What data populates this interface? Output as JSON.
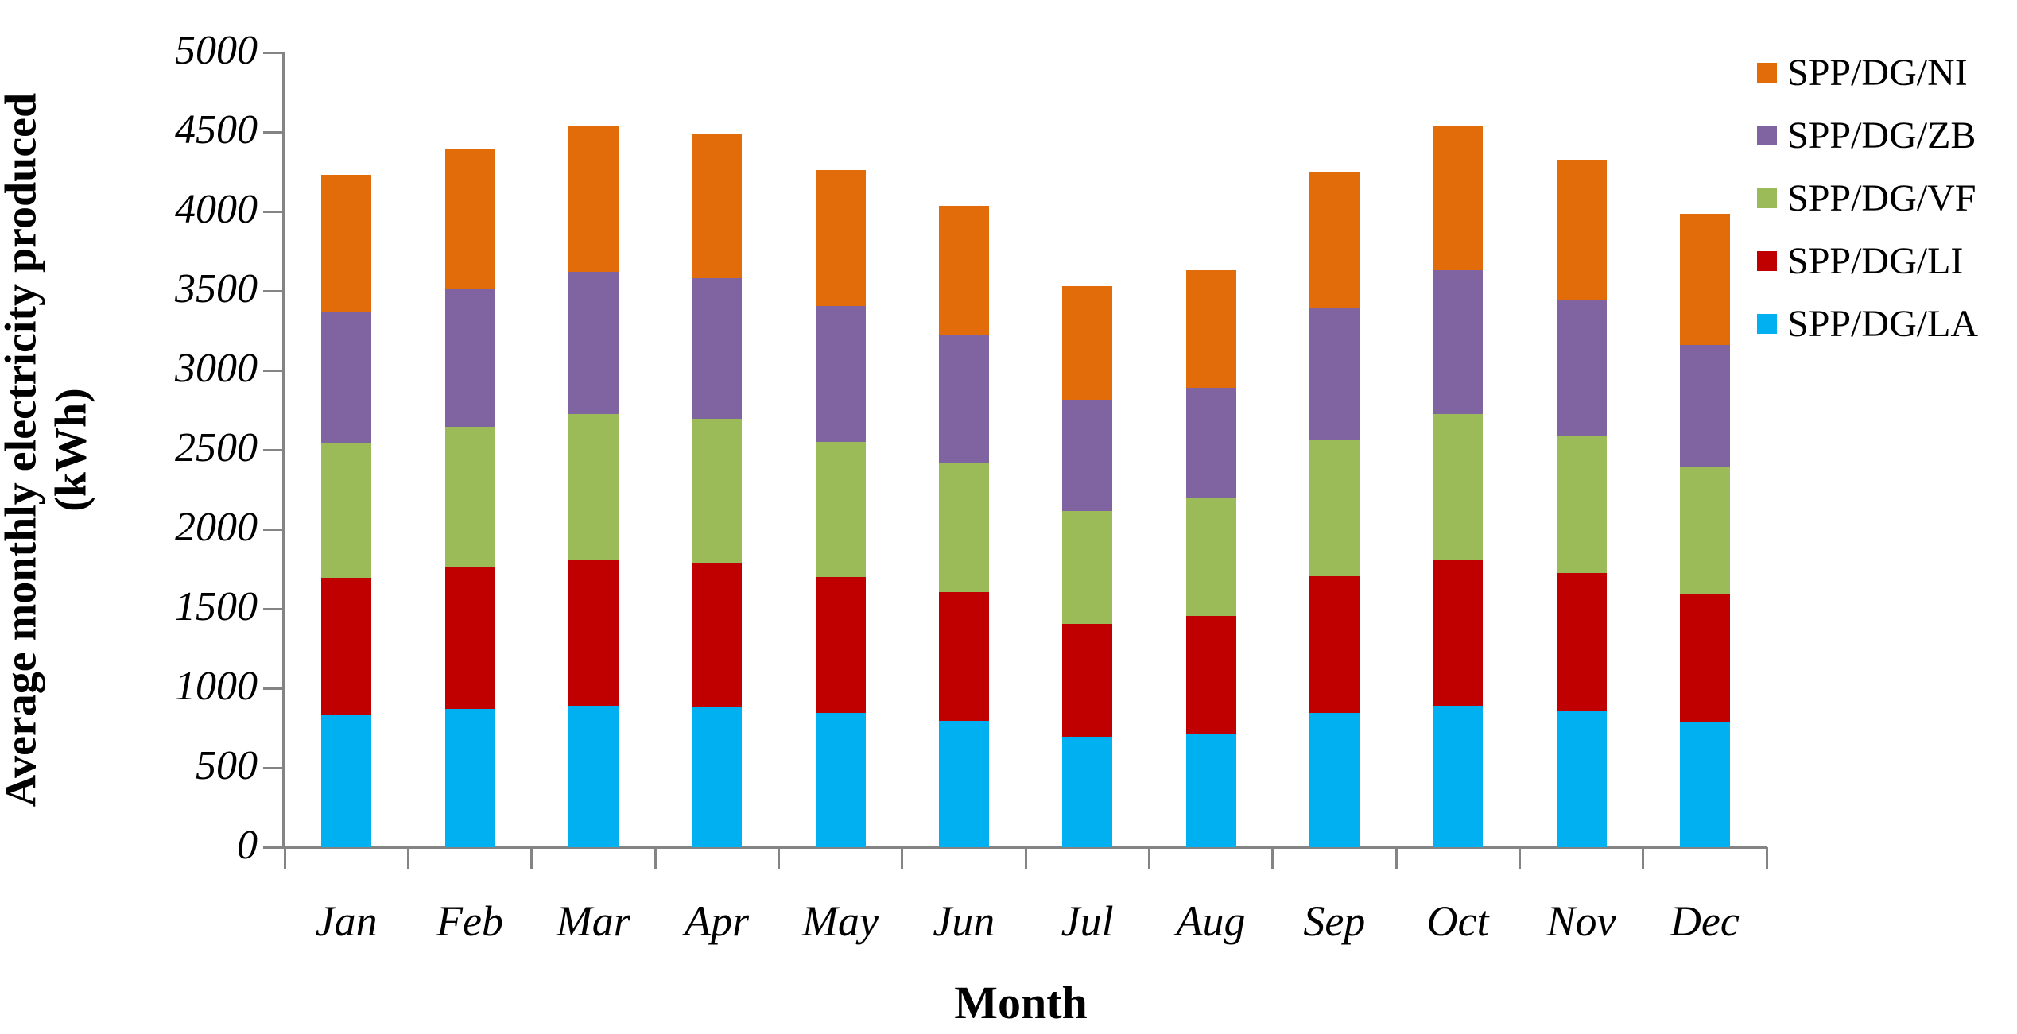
{
  "chart_data": {
    "type": "bar",
    "stacked": true,
    "xlabel": "Month",
    "ylabel": "Average monthly electricity produced (kWh)",
    "categories": [
      "Jan",
      "Feb",
      "Mar",
      "Apr",
      "May",
      "Jun",
      "Jul",
      "Aug",
      "Sep",
      "Oct",
      "Nov",
      "Dec"
    ],
    "series": [
      {
        "name": "SPP/DG/LA",
        "color": "#00B0F0",
        "values": [
          835,
          870,
          890,
          880,
          845,
          795,
          695,
          715,
          845,
          890,
          855,
          790
        ]
      },
      {
        "name": "SPP/DG/LI",
        "color": "#C00000",
        "values": [
          860,
          890,
          920,
          910,
          855,
          810,
          710,
          740,
          860,
          920,
          870,
          800
        ]
      },
      {
        "name": "SPP/DG/VF",
        "color": "#9BBB59",
        "values": [
          845,
          885,
          915,
          905,
          850,
          815,
          710,
          745,
          860,
          915,
          865,
          805
        ]
      },
      {
        "name": "SPP/DG/ZB",
        "color": "#8064A2",
        "values": [
          825,
          865,
          895,
          885,
          855,
          800,
          700,
          690,
          830,
          905,
          850,
          765
        ]
      },
      {
        "name": "SPP/DG/NI",
        "color": "#E36C0A",
        "values": [
          865,
          885,
          920,
          905,
          855,
          815,
          715,
          740,
          850,
          910,
          885,
          825
        ]
      }
    ],
    "totals": [
      4230,
      4395,
      4540,
      4485,
      4260,
      4035,
      3530,
      3630,
      4245,
      4540,
      4325,
      3985
    ],
    "legend_order": [
      "SPP/DG/NI",
      "SPP/DG/ZB",
      "SPP/DG/VF",
      "SPP/DG/LI",
      "SPP/DG/LA"
    ],
    "legend_position": "right",
    "ylim": [
      0,
      5000
    ],
    "ytick_step": 500,
    "grid": false,
    "axis_color": "#848484",
    "text_color": "#000000"
  }
}
